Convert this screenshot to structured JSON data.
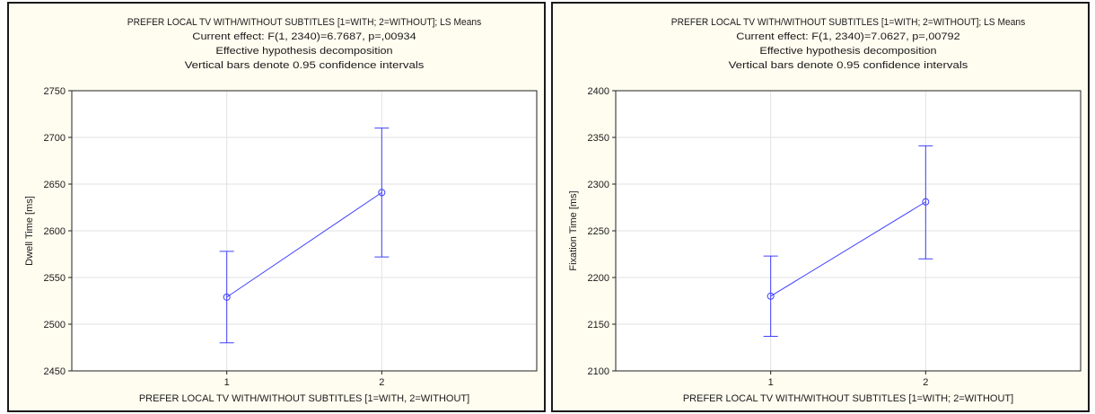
{
  "chart_data": [
    {
      "type": "line",
      "title_lines": [
        "PREFER LOCAL TV WITH/WITHOUT SUBTITLES [1=WITH; 2=WITHOUT]; LS Means",
        "Current effect: F(1, 2340)=6.7687, p=,00934",
        "Effective hypothesis decomposition",
        "Vertical bars denote 0.95 confidence intervals"
      ],
      "xlabel": "PREFER LOCAL TV WITH/WITHOUT SUBTITLES [1=WITH, 2=WITHOUT]",
      "ylabel": "Dwell Time [ms]",
      "categories": [
        "1",
        "2"
      ],
      "values": [
        2529,
        2641
      ],
      "ci_lower": [
        2480,
        2572
      ],
      "ci_upper": [
        2578,
        2710
      ],
      "ylim": [
        2450,
        2750
      ],
      "yticks": [
        2450,
        2500,
        2550,
        2600,
        2650,
        2700,
        2750
      ],
      "grid": true,
      "line_color": "#4040ff"
    },
    {
      "type": "line",
      "title_lines": [
        "PREFER LOCAL TV WITH/WITHOUT SUBTITLES [1=WITH; 2=WITHOUT]; LS Means",
        "Current effect: F(1, 2340)=7.0627, p=,00792",
        "Effective hypothesis decomposition",
        "Vertical bars denote 0.95 confidence intervals"
      ],
      "xlabel": "PREFER LOCAL TV WITH/WITHOUT SUBTITLES [1=WITH; 2=WITHOUT]",
      "ylabel": "Fixation Time [ms]",
      "categories": [
        "1",
        "2"
      ],
      "values": [
        2180,
        2281
      ],
      "ci_lower": [
        2137,
        2220
      ],
      "ci_upper": [
        2223,
        2341
      ],
      "ylim": [
        2100,
        2400
      ],
      "yticks": [
        2100,
        2150,
        2200,
        2250,
        2300,
        2350,
        2400
      ],
      "grid": true,
      "line_color": "#4040ff"
    }
  ]
}
